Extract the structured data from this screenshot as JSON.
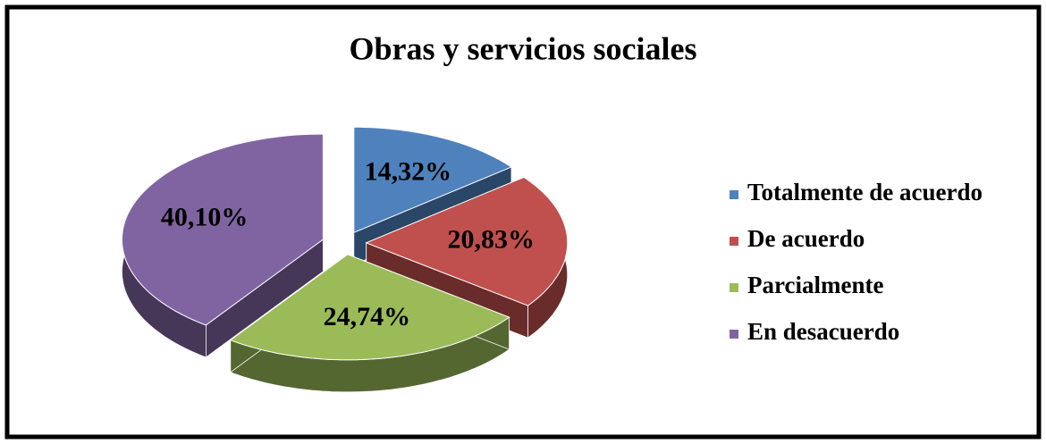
{
  "chart_data": {
    "type": "pie",
    "title": "Obras y servicios sociales",
    "categories": [
      "Totalmente de acuerdo",
      "De acuerdo",
      "Parcialmente",
      "En desacuerdo"
    ],
    "values": [
      14.32,
      20.83,
      24.74,
      40.1
    ],
    "value_labels": [
      "14,32%",
      "20,83%",
      "24,74%",
      "40,10%"
    ],
    "colors": [
      "#4f81bd",
      "#c0504d",
      "#9bbb59",
      "#8064a2"
    ],
    "legend": "right"
  }
}
